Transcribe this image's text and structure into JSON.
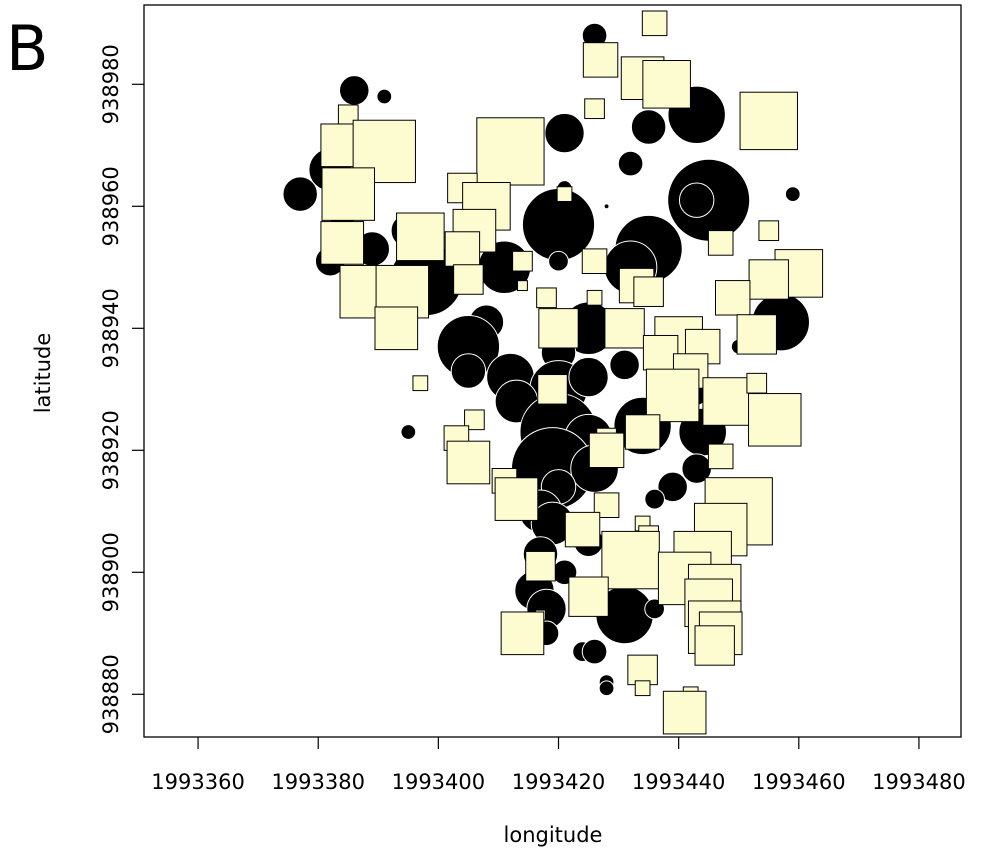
{
  "panel_label": "B",
  "chart_data": {
    "type": "scatter",
    "title": "",
    "xlabel": "longitude",
    "ylabel": "latitude",
    "xlim": [
      1993351,
      1993487
    ],
    "ylim": [
      938873,
      938993
    ],
    "xticks": [
      1993360,
      1993380,
      1993400,
      1993420,
      1993440,
      1993460,
      1993480
    ],
    "yticks": [
      938880,
      938900,
      938920,
      938940,
      938960,
      938980
    ],
    "grid": false,
    "legend": "none",
    "colors": {
      "positive": "#000000",
      "negative": "#fdfcd0",
      "outline": "#ffffff",
      "square_outline": "#000000"
    },
    "series": [
      {
        "marker": "circle",
        "points": [
          [
            1993426,
            938988,
            1.5
          ],
          [
            1993386,
            938979,
            1.8
          ],
          [
            1993391,
            938978,
            0.9
          ],
          [
            1993443,
            938975,
            3.5
          ],
          [
            1993435,
            938973,
            2.1
          ],
          [
            1993421,
            938972,
            2.4
          ],
          [
            1993432,
            938967,
            1.5
          ],
          [
            1993382,
            938966,
            2.6
          ],
          [
            1993445,
            938961,
            5.0
          ],
          [
            1993443,
            938961,
            2.1
          ],
          [
            1993377,
            938962,
            2.1
          ],
          [
            1993459,
            938962,
            0.9
          ],
          [
            1993421,
            938963,
            0.9
          ],
          [
            1993428,
            938960,
            0.3
          ],
          [
            1993384,
            938958,
            1.5
          ],
          [
            1993420,
            938957,
            4.4
          ],
          [
            1993395,
            938956,
            2.1
          ],
          [
            1993435,
            938953,
            4.1
          ],
          [
            1993389,
            938953,
            2.1
          ],
          [
            1993382,
            938951,
            1.8
          ],
          [
            1993420,
            938951,
            1.2
          ],
          [
            1993411,
            938950,
            3.2
          ],
          [
            1993432,
            938950,
            3.2
          ],
          [
            1993398,
            938948,
            4.4
          ],
          [
            1993435,
            938946,
            1.8
          ],
          [
            1993457,
            938941,
            3.5
          ],
          [
            1993408,
            938941,
            2.1
          ],
          [
            1993425,
            938940,
            3.2
          ],
          [
            1993405,
            938937,
            3.8
          ],
          [
            1993420,
            938936,
            2.1
          ],
          [
            1993450,
            938937,
            0.9
          ],
          [
            1993431,
            938934,
            1.8
          ],
          [
            1993405,
            938933,
            2.1
          ],
          [
            1993412,
            938932,
            2.9
          ],
          [
            1993420,
            938930,
            3.5
          ],
          [
            1993425,
            938932,
            2.4
          ],
          [
            1993413,
            938928,
            2.6
          ],
          [
            1993443,
            938929,
            1.2
          ],
          [
            1993420,
            938923,
            4.7
          ],
          [
            1993425,
            938922,
            2.9
          ],
          [
            1993434,
            938924,
            3.5
          ],
          [
            1993444,
            938923,
            2.9
          ],
          [
            1993395,
            938923,
            0.9
          ],
          [
            1993419,
            938917,
            5.0
          ],
          [
            1993426,
            938917,
            2.9
          ],
          [
            1993443,
            938917,
            1.8
          ],
          [
            1993420,
            938914,
            2.1
          ],
          [
            1993439,
            938914,
            1.8
          ],
          [
            1993436,
            938912,
            1.2
          ],
          [
            1993417,
            938910,
            2.6
          ],
          [
            1993419,
            938908,
            2.6
          ],
          [
            1993425,
            938905,
            1.8
          ],
          [
            1993417,
            938903,
            2.1
          ],
          [
            1993421,
            938900,
            1.5
          ],
          [
            1993416,
            938897,
            2.4
          ],
          [
            1993418,
            938894,
            2.4
          ],
          [
            1993431,
            938893,
            3.5
          ],
          [
            1993418,
            938890,
            1.5
          ],
          [
            1993436,
            938894,
            1.2
          ],
          [
            1993424,
            938887,
            1.2
          ],
          [
            1993426,
            938887,
            1.5
          ],
          [
            1993428,
            938882,
            0.9
          ],
          [
            1993428,
            938881,
            0.9
          ]
        ]
      },
      {
        "marker": "square",
        "points": [
          [
            1993436,
            938990,
            1.5
          ],
          [
            1993427,
            938984,
            2.1
          ],
          [
            1993434,
            938981,
            2.6
          ],
          [
            1993438,
            938980,
            2.9
          ],
          [
            1993426,
            938976,
            1.2
          ],
          [
            1993385,
            938975,
            1.2
          ],
          [
            1993455,
            938974,
            3.5
          ],
          [
            1993384,
            938970,
            2.6
          ],
          [
            1993391,
            938969,
            3.8
          ],
          [
            1993412,
            938969,
            4.1
          ],
          [
            1993385,
            938962,
            3.2
          ],
          [
            1993404,
            938963,
            1.8
          ],
          [
            1993408,
            938960,
            2.9
          ],
          [
            1993421,
            938962,
            0.9
          ],
          [
            1993406,
            938956,
            2.6
          ],
          [
            1993397,
            938955,
            2.9
          ],
          [
            1993455,
            938956,
            1.2
          ],
          [
            1993404,
            938953,
            2.1
          ],
          [
            1993384,
            938954,
            2.6
          ],
          [
            1993447,
            938954,
            1.5
          ],
          [
            1993426,
            938951,
            1.5
          ],
          [
            1993414,
            938951,
            1.2
          ],
          [
            1993460,
            938949,
            2.9
          ],
          [
            1993405,
            938948,
            1.8
          ],
          [
            1993433,
            938947,
            2.1
          ],
          [
            1993455,
            938948,
            2.4
          ],
          [
            1993435,
            938946,
            1.8
          ],
          [
            1993388,
            938946,
            3.2
          ],
          [
            1993394,
            938946,
            3.2
          ],
          [
            1993414,
            938947,
            0.6
          ],
          [
            1993418,
            938945,
            1.2
          ],
          [
            1993426,
            938945,
            0.9
          ],
          [
            1993449,
            938945,
            2.1
          ],
          [
            1993393,
            938940,
            2.6
          ],
          [
            1993420,
            938940,
            2.4
          ],
          [
            1993431,
            938940,
            2.4
          ],
          [
            1993440,
            938938,
            2.9
          ],
          [
            1993453,
            938939,
            2.4
          ],
          [
            1993437,
            938936,
            2.1
          ],
          [
            1993444,
            938937,
            2.1
          ],
          [
            1993442,
            938933,
            2.1
          ],
          [
            1993397,
            938931,
            0.9
          ],
          [
            1993419,
            938930,
            1.8
          ],
          [
            1993439,
            938929,
            3.2
          ],
          [
            1993448,
            938928,
            2.9
          ],
          [
            1993453,
            938931,
            1.2
          ],
          [
            1993456,
            938925,
            3.2
          ],
          [
            1993406,
            938925,
            1.2
          ],
          [
            1993403,
            938922,
            1.5
          ],
          [
            1993434,
            938923,
            2.1
          ],
          [
            1993428,
            938922,
            1.2
          ],
          [
            1993428,
            938920,
            2.1
          ],
          [
            1993405,
            938918,
            2.6
          ],
          [
            1993447,
            938919,
            1.5
          ],
          [
            1993411,
            938915,
            1.5
          ],
          [
            1993413,
            938912,
            2.6
          ],
          [
            1993428,
            938911,
            1.5
          ],
          [
            1993450,
            938910,
            4.1
          ],
          [
            1993447,
            938907,
            3.2
          ],
          [
            1993434,
            938908,
            0.9
          ],
          [
            1993435,
            938906,
            1.2
          ],
          [
            1993424,
            938907,
            2.1
          ],
          [
            1993432,
            938902,
            3.5
          ],
          [
            1993444,
            938902,
            3.5
          ],
          [
            1993417,
            938901,
            1.8
          ],
          [
            1993441,
            938899,
            3.2
          ],
          [
            1993446,
            938897,
            3.2
          ],
          [
            1993445,
            938895,
            2.9
          ],
          [
            1993425,
            938896,
            2.4
          ],
          [
            1993417,
            938893,
            0.6
          ],
          [
            1993446,
            938891,
            3.2
          ],
          [
            1993447,
            938890,
            2.6
          ],
          [
            1993446,
            938888,
            2.4
          ],
          [
            1993414,
            938890,
            2.6
          ],
          [
            1993434,
            938884,
            1.8
          ],
          [
            1993434,
            938881,
            0.9
          ],
          [
            1993442,
            938880,
            0.9
          ],
          [
            1993441,
            938877,
            2.6
          ]
        ]
      }
    ]
  }
}
